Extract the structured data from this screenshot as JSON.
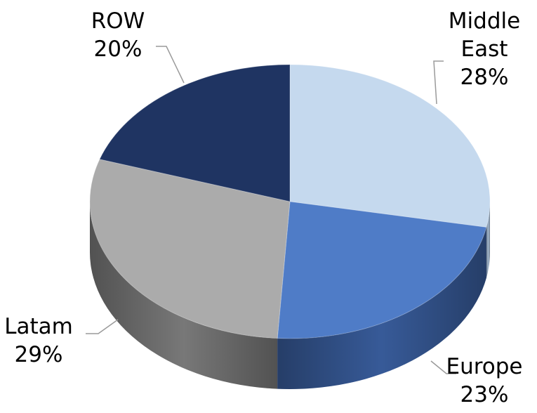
{
  "chart_data": {
    "type": "pie",
    "title": "",
    "categories": [
      "Middle East",
      "Europe",
      "Latam",
      "ROW"
    ],
    "values": [
      28,
      23,
      29,
      20
    ],
    "label_lines": [
      [
        "Middle",
        "East",
        "28%"
      ],
      [
        "Europe",
        "23%"
      ],
      [
        "Latam",
        "29%"
      ],
      [
        "ROW",
        "20%"
      ]
    ],
    "colors": [
      "#C5D9EE",
      "#4F7CC7",
      "#ABABAB",
      "#1F3462"
    ],
    "side_colors": [
      "#A9BFD7",
      "#3A5FA0",
      "#7E7E7E",
      "#152646"
    ],
    "legend": "none",
    "style": "3d"
  }
}
